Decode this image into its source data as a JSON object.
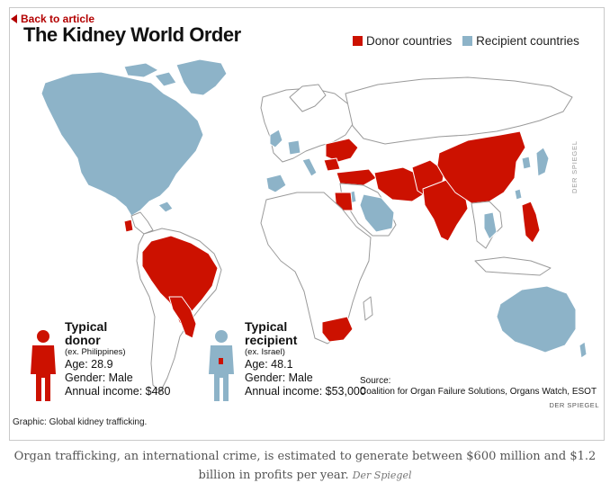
{
  "back_link": "Back to article",
  "title": "The Kidney World Order",
  "legend": {
    "donor_label": "Donor countries",
    "recipient_label": "Recipient countries",
    "donor_color": "#cc1100",
    "recipient_color": "#8db3c8"
  },
  "donor": {
    "heading_1": "Typical",
    "heading_2": "donor",
    "example": "(ex. Philippines)",
    "age": "Age: 28.9",
    "gender": "Gender: Male",
    "income": "Annual income: $480"
  },
  "recipient": {
    "heading_1": "Typical",
    "heading_2": "recipient",
    "example": "(ex. Israel)",
    "age": "Age: 48.1",
    "gender": "Gender: Male",
    "income": "Annual income: $53,000"
  },
  "source": {
    "label": "Source:",
    "text": "Coalition for Organ Failure Solutions, Organs Watch, ESOT"
  },
  "credit_small": "DER SPIEGEL",
  "credit_vertical": "DER SPIEGEL",
  "graphic_caption": "Graphic: Global kidney trafficking.",
  "caption": {
    "text": "Organ trafficking, an international crime, is estimated to generate between $600 million and $1.2 billion in profits per year.",
    "source": "Der Spiegel"
  },
  "icons": {
    "back": "triangle-left-icon",
    "donor_person": "person-silhouette-icon",
    "recipient_person": "person-silhouette-icon"
  }
}
